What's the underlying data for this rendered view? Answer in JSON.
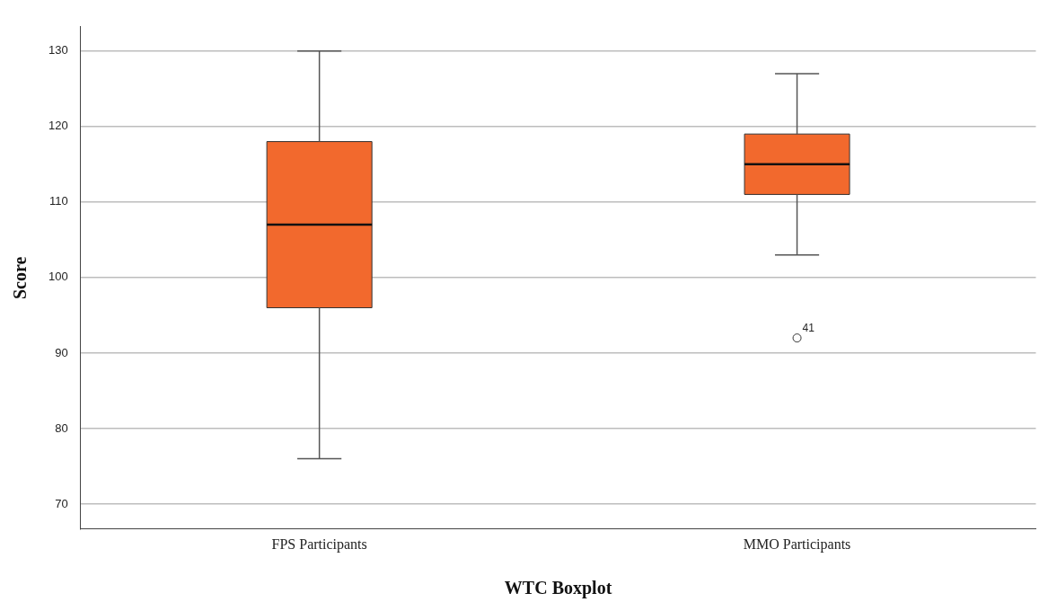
{
  "chart_data": {
    "type": "box",
    "xlabel": "WTC Boxplot",
    "ylabel": "Score",
    "categories": [
      "FPS Participants",
      "MMO Participants"
    ],
    "series": [
      {
        "color": "#f2692d",
        "boxes": [
          {
            "low": 76,
            "q1": 96,
            "median": 107,
            "q3": 118,
            "high": 130
          },
          {
            "low": 103,
            "q1": 111,
            "median": 115,
            "q3": 119,
            "high": 127,
            "outliers": [
              92
            ]
          }
        ]
      }
    ],
    "ylim": [
      66.7,
      133.2
    ],
    "yticks": [
      70,
      80,
      90,
      100,
      110,
      120,
      130
    ],
    "grid": "y",
    "legend": false,
    "annotations": [
      "41"
    ]
  }
}
